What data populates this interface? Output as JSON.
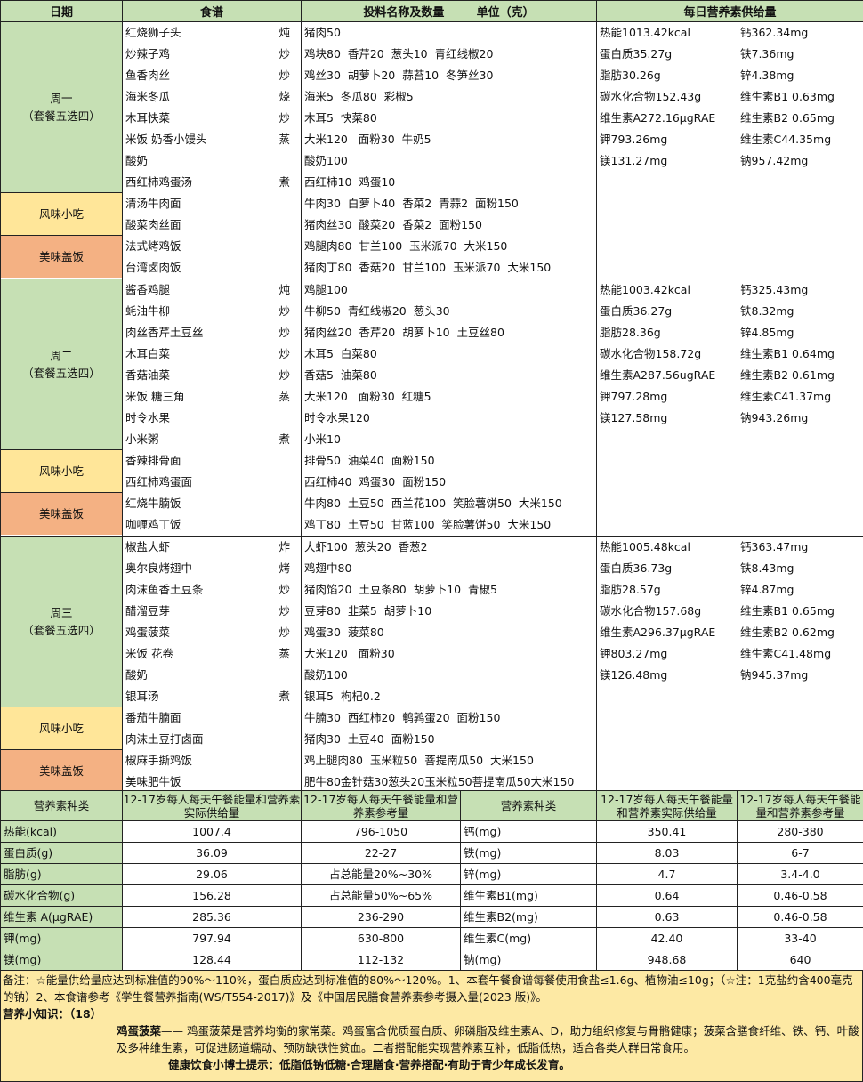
{
  "headers": {
    "date": "日期",
    "recipe": "食谱",
    "ingredients": "投料名称及数量        单位（克）",
    "nutrition": "每日营养素供给量"
  },
  "colors": {
    "main": "#c6e0b4",
    "snack": "#ffe699",
    "rice": "#f4b183",
    "notes": "#fde9a4"
  },
  "weeks": [
    {
      "day": "周一",
      "sub": "（套餐五选四）",
      "snack_label": "风味小吃",
      "rice_label": "美味盖饭",
      "items": [
        [
          "红烧狮子头",
          "炖",
          "猪肉50"
        ],
        [
          "炒辣子鸡",
          "炒",
          "鸡块80  香芹20  葱头10  青红线椒20"
        ],
        [
          "鱼香肉丝",
          "炒",
          "鸡丝30  胡萝卜20  蒜苔10  冬笋丝30"
        ],
        [
          "海米冬瓜",
          "烧",
          "海米5  冬瓜80  彩椒5"
        ],
        [
          "木耳快菜",
          "炒",
          "木耳5  快菜80"
        ],
        [
          "米饭   奶香小馒头",
          "蒸",
          "大米120   面粉30  牛奶5"
        ],
        [
          "酸奶",
          "",
          "酸奶100"
        ],
        [
          "西红柿鸡蛋汤",
          "煮",
          "西红柿10  鸡蛋10"
        ],
        [
          "清汤牛肉面",
          "",
          "牛肉30  白萝卜40  香菜2  青蒜2  面粉150"
        ],
        [
          "酸菜肉丝面",
          "",
          "猪肉丝30  酸菜20  香菜2  面粉150"
        ],
        [
          "法式烤鸡饭",
          "",
          "鸡腿肉80  甘兰100  玉米派70  大米150"
        ],
        [
          "台湾卤肉饭",
          "",
          "猪肉丁80  香菇20  甘兰100  玉米派70  大米150"
        ]
      ],
      "nutrition": [
        [
          "热能1013.42kcal",
          "钙362.34mg"
        ],
        [
          "蛋白质35.27g",
          "铁7.36mg"
        ],
        [
          "脂肪30.26g",
          "锌4.38mg"
        ],
        [
          "碳水化合物152.43g",
          "维生素B1 0.63mg"
        ],
        [
          "维生素A272.16μgRAE",
          "维生素B2  0.65mg"
        ],
        [
          "钾793.26mg",
          "维生素C44.35mg"
        ],
        [
          "镁131.27mg",
          "钠957.42mg"
        ]
      ]
    },
    {
      "day": "周二",
      "sub": "（套餐五选四）",
      "snack_label": "风味小吃",
      "rice_label": "美味盖饭",
      "items": [
        [
          "酱香鸡腿",
          "炖",
          "鸡腿100"
        ],
        [
          "蚝油牛柳",
          "炒",
          "牛柳50  青红线椒20  葱头30"
        ],
        [
          "肉丝香芹土豆丝",
          "炒",
          "猪肉丝20  香芹20  胡萝卜10  土豆丝80"
        ],
        [
          "木耳白菜",
          "炒",
          "木耳5  白菜80"
        ],
        [
          "香菇油菜",
          "炒",
          "香菇5  油菜80"
        ],
        [
          "米饭   糖三角",
          "蒸",
          "大米120   面粉30  红糖5"
        ],
        [
          "时令水果",
          "",
          "时令水果120"
        ],
        [
          "小米粥",
          "煮",
          "小米10"
        ],
        [
          "香辣排骨面",
          "",
          "排骨50  油菜40  面粉150"
        ],
        [
          "西红柿鸡蛋面",
          "",
          "西红柿40  鸡蛋30  面粉150"
        ],
        [
          "红烧牛腩饭",
          "",
          "牛肉80  土豆50  西兰花100  笑脸薯饼50  大米150"
        ],
        [
          "咖喱鸡丁饭",
          "",
          "鸡丁80  土豆50  甘蓝100  笑脸薯饼50  大米150"
        ]
      ],
      "nutrition": [
        [
          "热能1003.42kcal",
          "钙325.43mg"
        ],
        [
          "蛋白质36.27g",
          "铁8.32mg"
        ],
        [
          "脂肪28.36g",
          "锌4.85mg"
        ],
        [
          "碳水化合物158.72g",
          "维生素B1 0.64mg"
        ],
        [
          "维生素A287.56ugRAE",
          "维生素B2  0.61mg"
        ],
        [
          "钾797.28mg",
          "维生素C41.37mg"
        ],
        [
          "镁127.58mg",
          "钠943.26mg"
        ]
      ]
    },
    {
      "day": "周三",
      "sub": "（套餐五选四）",
      "snack_label": "风味小吃",
      "rice_label": "美味盖饭",
      "items": [
        [
          "椒盐大虾",
          "炸",
          "大虾100  葱头20  香葱2"
        ],
        [
          "奥尔良烤翅中",
          "烤",
          "鸡翅中80"
        ],
        [
          "肉沫鱼香土豆条",
          "炒",
          "猪肉馅20  土豆条80  胡萝卜10  青椒5"
        ],
        [
          "醋溜豆芽",
          "炒",
          "豆芽80  韭菜5  胡萝卜10"
        ],
        [
          "鸡蛋菠菜",
          "炒",
          "鸡蛋30  菠菜80"
        ],
        [
          "米饭   花卷",
          "蒸",
          "大米120   面粉30"
        ],
        [
          "酸奶",
          "",
          "酸奶100"
        ],
        [
          "银耳汤",
          "煮",
          "银耳5  枸杞0.2"
        ],
        [
          "番茄牛腩面",
          "",
          "牛腩30  西红柿20  鹌鹑蛋20  面粉150"
        ],
        [
          "肉沫土豆打卤面",
          "",
          "猪肉30  土豆40  面粉150"
        ],
        [
          "椒麻手撕鸡饭",
          "",
          "鸡上腿肉80  玉米粒50  菩提南瓜50  大米150"
        ],
        [
          "美味肥牛饭",
          "",
          "肥牛80金针菇30葱头20玉米粒50菩提南瓜50大米150"
        ]
      ],
      "nutrition": [
        [
          "热能1005.48kcal",
          "钙363.47mg"
        ],
        [
          "蛋白质36.73g",
          "铁8.43mg"
        ],
        [
          "脂肪28.57g",
          "锌4.87mg"
        ],
        [
          "碳水化合物157.68g",
          "维生素B1 0.65mg"
        ],
        [
          "维生素A296.37μgRAE",
          "维生素B2 0.62mg"
        ],
        [
          "钾803.27mg",
          "维生素C41.48mg"
        ],
        [
          "镁126.48mg",
          "钠945.37mg"
        ]
      ]
    }
  ],
  "summary": {
    "headers": [
      "营养素种类",
      "12-17岁每人每天午餐能量和营养素实际供给量",
      "12-17岁每人每天午餐能量和营养素参考量",
      "营养素种类",
      "12-17岁每人每天午餐能量和营养素实际供给量",
      "12-17岁每人每天午餐能量和营养素参考量"
    ],
    "rows": [
      [
        "热能(kcal)",
        "1007.4",
        "796-1050",
        "钙(mg)",
        "350.41",
        "280-380"
      ],
      [
        "蛋白质(g)",
        "36.09",
        "22-27",
        "铁(mg)",
        "8.03",
        "6-7"
      ],
      [
        "脂肪(g)",
        "29.06",
        "占总能量20%~30%",
        "锌(mg)",
        "4.7",
        "3.4-4.0"
      ],
      [
        "碳水化合物(g)",
        "156.28",
        "占总能量50%~65%",
        "维生素B1(mg)",
        "0.64",
        "0.46-0.58"
      ],
      [
        "维生素 A(μgRAE)",
        "285.36",
        "236-290",
        "维生素B2(mg)",
        "0.63",
        "0.46-0.58"
      ],
      [
        "钾(mg)",
        "797.94",
        "630-800",
        "维生素C(mg)",
        "42.40",
        "33-40"
      ],
      [
        "镁(mg)",
        "128.44",
        "112-132",
        "钠(mg)",
        "948.68",
        "640"
      ]
    ]
  },
  "notes": {
    "remark": "备注：☆能量供给量应达到标准值的90%～110%，蛋白质应达到标准值的80%～120%。1、本套午餐食谱每餐使用食盐≤1.6g、植物油≤10g；（☆注：1克盐约含400毫克的钠）2、本食谱参考《学生餐营养指南(WS/T554-2017)》及《中国居民膳食营养素参考摄入量(2023 版)》。",
    "knowledge_title": "营养小知识：（18）",
    "dish": "鸡蛋菠菜",
    "dish_text": "—— 鸡蛋菠菜是营养均衡的家常菜。鸡蛋富含优质蛋白质、卵磷脂及维生素A、D，助力组织修复与骨骼健康；菠菜含膳食纤维、铁、钙、叶酸及多种维生素，可促进肠道蠕动、预防缺铁性贫血。二者搭配能实现营养素互补，低脂低热，适合各类人群日常食用。",
    "tip": "健康饮食小博士提示：低脂低钠低糖·合理膳食·营养搭配·有助于青少年成长发育。"
  }
}
